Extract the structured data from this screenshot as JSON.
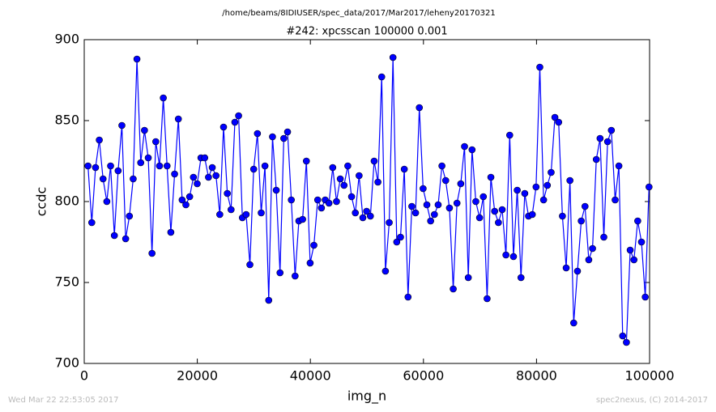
{
  "chart_data": {
    "type": "line",
    "suptitle": "/home/beams/8IDIUSER/spec_data/2017/Mar2017/leheny20170321",
    "title": "#242: xpcsscan 100000 0.001",
    "xlabel": "img_n",
    "ylabel": "ccdc",
    "timestamp": "Wed Mar 22 22:53:05 2017",
    "credit": "spec2nexus, (C) 2014-2017",
    "x": [
      666,
      1332,
      1998,
      2664,
      3330,
      3996,
      4662,
      5328,
      5994,
      6660,
      7326,
      7992,
      8658,
      9324,
      9990,
      10656,
      11322,
      11988,
      12654,
      13320,
      13986,
      14652,
      15318,
      15984,
      16650,
      17316,
      17982,
      18648,
      19314,
      19980,
      20646,
      21312,
      21978,
      22644,
      23310,
      23976,
      24642,
      25308,
      25974,
      26640,
      27306,
      27972,
      28638,
      29304,
      29970,
      30636,
      31302,
      31968,
      32634,
      33300,
      33966,
      34632,
      35298,
      35964,
      36630,
      37296,
      37962,
      38628,
      39294,
      39960,
      40626,
      41292,
      41958,
      42624,
      43290,
      43956,
      44622,
      45288,
      45954,
      46620,
      47286,
      47952,
      48618,
      49284,
      49950,
      50616,
      51282,
      51948,
      52614,
      53280,
      53946,
      54612,
      55278,
      55944,
      56610,
      57276,
      57942,
      58608,
      59274,
      59940,
      60606,
      61272,
      61938,
      62604,
      63270,
      63936,
      64602,
      65268,
      65934,
      66600,
      67266,
      67932,
      68598,
      69264,
      69930,
      70596,
      71262,
      71928,
      72594,
      73260,
      73926,
      74592,
      75258,
      75924,
      76590,
      77256,
      77922,
      78588,
      79254,
      79920,
      80586,
      81252,
      81918,
      82584,
      83250,
      83916,
      84582,
      85248,
      85914,
      86580,
      87246,
      87912,
      88578,
      89244,
      89910,
      90576,
      91242,
      91908,
      92574,
      93240,
      93906,
      94572,
      95238,
      95904,
      96570,
      97236,
      97902,
      98568,
      99234,
      99900
    ],
    "series": [
      {
        "color": "#0000ff",
        "values": [
          822,
          787,
          821,
          838,
          814,
          800,
          822,
          779,
          819,
          847,
          777,
          791,
          814,
          888,
          824,
          844,
          827,
          768,
          837,
          822,
          864,
          822,
          781,
          817,
          851,
          801,
          798,
          803,
          815,
          811,
          827,
          827,
          815,
          821,
          816,
          792,
          846,
          805,
          795,
          849,
          853,
          790,
          792,
          761,
          820,
          842,
          793,
          822,
          739,
          840,
          807,
          756,
          839,
          843,
          801,
          754,
          788,
          789,
          825,
          762,
          773,
          801,
          796,
          801,
          799,
          821,
          800,
          814,
          810,
          822,
          803,
          793,
          816,
          790,
          794,
          791,
          825,
          812,
          877,
          757,
          787,
          889,
          775,
          778,
          820,
          741,
          797,
          793,
          858,
          808,
          798,
          788,
          792,
          798,
          822,
          813,
          796,
          746,
          799,
          811,
          834,
          753,
          832,
          800,
          790,
          803,
          740,
          815,
          794,
          787,
          795,
          767,
          841,
          766,
          807,
          753,
          805,
          791,
          792,
          809,
          883,
          801,
          810,
          818,
          852,
          849,
          791,
          759,
          813,
          725,
          757,
          788,
          797,
          764,
          771,
          826,
          839,
          778,
          837,
          844,
          801,
          822,
          717,
          713,
          770,
          764,
          788,
          775,
          741,
          809
        ]
      }
    ],
    "xlim": [
      0,
      100000
    ],
    "xticks": [
      0,
      20000,
      40000,
      60000,
      80000,
      100000
    ],
    "ylim": [
      700,
      900
    ],
    "yticks": [
      700,
      750,
      800,
      850,
      900
    ]
  }
}
